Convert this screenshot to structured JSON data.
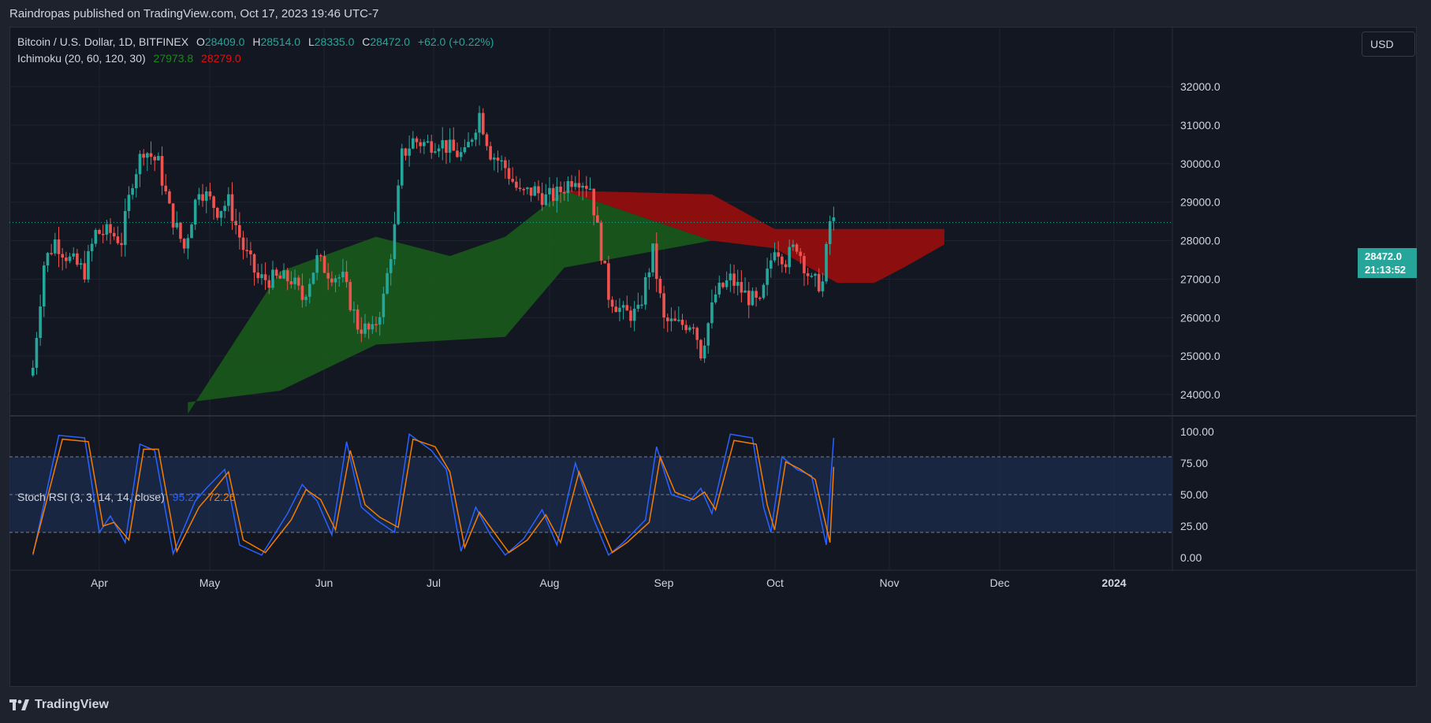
{
  "header": {
    "published": "Raindropas published on TradingView.com, Oct 17, 2023 19:46 UTC-7"
  },
  "legend": {
    "symbol": "Bitcoin / U.S. Dollar, 1D, BITFINEX",
    "o_label": "O",
    "o_value": "28409.0",
    "h_label": "H",
    "h_value": "28514.0",
    "l_label": "L",
    "l_value": "28335.0",
    "c_label": "C",
    "c_value": "28472.0",
    "change": "+62.0 (+0.22%)",
    "ichimoku_label": "Ichimoku (20, 60, 120, 30)",
    "ichimoku_a": "27973.8",
    "ichimoku_b": "28279.0",
    "stoch_label": "Stoch RSI (3, 3, 14, 14, close)",
    "stoch_k": "95.27",
    "stoch_d": "72.26"
  },
  "controls": {
    "currency": "USD"
  },
  "price_tag": {
    "price": "28472.0",
    "countdown": "21:13:52"
  },
  "footer": {
    "brand": "TradingView"
  },
  "colors": {
    "up": "#26a69a",
    "down": "#ef5350",
    "cloud_bull": "#1a5e1a",
    "cloud_bear": "#9b0d0d",
    "k_line": "#2962ff",
    "d_line": "#f57c00"
  },
  "chart_data": {
    "type": "candlestick",
    "x_ticks": [
      "Apr",
      "May",
      "Jun",
      "Jul",
      "Aug",
      "Sep",
      "Oct",
      "Nov",
      "Dec",
      "2024"
    ],
    "y_ticks": [
      "32000.0",
      "31000.0",
      "30000.0",
      "29000.0",
      "28000.0",
      "27000.0",
      "26000.0",
      "25000.0",
      "24000.0"
    ],
    "ylim": [
      23500,
      33300
    ],
    "last_price": 28472.0,
    "close_path": [
      [
        "2023-03-14",
        24700
      ],
      [
        "2023-03-17",
        27400
      ],
      [
        "2023-03-20",
        28000
      ],
      [
        "2023-03-24",
        27500
      ],
      [
        "2023-03-28",
        27200
      ],
      [
        "2023-03-31",
        28200
      ],
      [
        "2023-04-04",
        28200
      ],
      [
        "2023-04-07",
        28000
      ],
      [
        "2023-04-10",
        29600
      ],
      [
        "2023-04-13",
        30400
      ],
      [
        "2023-04-17",
        30000
      ],
      [
        "2023-04-20",
        28800
      ],
      [
        "2023-04-24",
        27800
      ],
      [
        "2023-04-28",
        29400
      ],
      [
        "2023-05-03",
        28800
      ],
      [
        "2023-05-06",
        29000
      ],
      [
        "2023-05-10",
        27800
      ],
      [
        "2023-05-14",
        27000
      ],
      [
        "2023-05-18",
        27000
      ],
      [
        "2023-05-23",
        27000
      ],
      [
        "2023-05-26",
        26500
      ],
      [
        "2023-05-30",
        27500
      ],
      [
        "2023-06-02",
        27200
      ],
      [
        "2023-06-06",
        27000
      ],
      [
        "2023-06-10",
        25800
      ],
      [
        "2023-06-14",
        25600
      ],
      [
        "2023-06-17",
        26500
      ],
      [
        "2023-06-20",
        28300
      ],
      [
        "2023-06-22",
        30200
      ],
      [
        "2023-06-25",
        30600
      ],
      [
        "2023-06-29",
        30500
      ],
      [
        "2023-07-02",
        30600
      ],
      [
        "2023-07-06",
        30300
      ],
      [
        "2023-07-09",
        30200
      ],
      [
        "2023-07-13",
        31300
      ],
      [
        "2023-07-16",
        30300
      ],
      [
        "2023-07-20",
        29900
      ],
      [
        "2023-07-24",
        29200
      ],
      [
        "2023-07-28",
        29300
      ],
      [
        "2023-07-31",
        29100
      ],
      [
        "2023-08-03",
        29200
      ],
      [
        "2023-08-08",
        29700
      ],
      [
        "2023-08-12",
        29400
      ],
      [
        "2023-08-17",
        26600
      ],
      [
        "2023-08-21",
        26100
      ],
      [
        "2023-08-25",
        26100
      ],
      [
        "2023-08-29",
        27700
      ],
      [
        "2023-09-01",
        25900
      ],
      [
        "2023-09-05",
        25800
      ],
      [
        "2023-09-09",
        25900
      ],
      [
        "2023-09-11",
        25100
      ],
      [
        "2023-09-15",
        26600
      ],
      [
        "2023-09-19",
        27000
      ],
      [
        "2023-09-23",
        26600
      ],
      [
        "2023-09-27",
        26300
      ],
      [
        "2023-10-01",
        27900
      ],
      [
        "2023-10-04",
        27500
      ],
      [
        "2023-10-07",
        27900
      ],
      [
        "2023-10-11",
        26900
      ],
      [
        "2023-10-14",
        26900
      ],
      [
        "2023-10-16",
        28500
      ],
      [
        "2023-10-17",
        28472
      ]
    ],
    "ichimoku_cloud": {
      "span_a": [
        [
          "2023-04-25",
          23500
        ],
        [
          "2023-05-20",
          27200
        ],
        [
          "2023-06-15",
          28100
        ],
        [
          "2023-07-05",
          27600
        ],
        [
          "2023-07-20",
          28100
        ],
        [
          "2023-08-05",
          29300
        ],
        [
          "2023-09-14",
          29200
        ],
        [
          "2023-10-01",
          28300
        ],
        [
          "2023-11-16",
          28300
        ]
      ],
      "span_b": [
        [
          "2023-04-25",
          23800
        ],
        [
          "2023-05-20",
          24100
        ],
        [
          "2023-06-15",
          25300
        ],
        [
          "2023-07-20",
          25500
        ],
        [
          "2023-08-05",
          27300
        ],
        [
          "2023-09-14",
          28000
        ],
        [
          "2023-10-01",
          27800
        ],
        [
          "2023-10-18",
          26900
        ],
        [
          "2023-10-28",
          26900
        ],
        [
          "2023-11-05",
          27300
        ],
        [
          "2023-11-16",
          27900
        ]
      ]
    },
    "stoch_rsi": {
      "ylim": [
        -8,
        108
      ],
      "y_ticks": [
        "100.00",
        "75.00",
        "50.00",
        "25.00",
        "0.00"
      ],
      "bands": [
        80,
        50,
        20
      ],
      "k_series": "Stoch RSI %K",
      "d_series": "Stoch RSI %D",
      "k": [
        [
          "2023-03-14",
          2
        ],
        [
          "2023-03-21",
          97
        ],
        [
          "2023-03-28",
          95
        ],
        [
          "2023-04-01",
          20
        ],
        [
          "2023-04-04",
          33
        ],
        [
          "2023-04-08",
          12
        ],
        [
          "2023-04-12",
          90
        ],
        [
          "2023-04-16",
          85
        ],
        [
          "2023-04-21",
          3
        ],
        [
          "2023-04-27",
          45
        ],
        [
          "2023-04-30",
          55
        ],
        [
          "2023-05-05",
          70
        ],
        [
          "2023-05-09",
          10
        ],
        [
          "2023-05-15",
          2
        ],
        [
          "2023-05-22",
          35
        ],
        [
          "2023-05-26",
          58
        ],
        [
          "2023-05-30",
          45
        ],
        [
          "2023-06-03",
          18
        ],
        [
          "2023-06-07",
          92
        ],
        [
          "2023-06-11",
          40
        ],
        [
          "2023-06-15",
          30
        ],
        [
          "2023-06-20",
          20
        ],
        [
          "2023-06-24",
          98
        ],
        [
          "2023-06-30",
          85
        ],
        [
          "2023-07-04",
          70
        ],
        [
          "2023-07-08",
          5
        ],
        [
          "2023-07-12",
          40
        ],
        [
          "2023-07-16",
          18
        ],
        [
          "2023-07-20",
          2
        ],
        [
          "2023-07-25",
          15
        ],
        [
          "2023-07-30",
          38
        ],
        [
          "2023-08-03",
          10
        ],
        [
          "2023-08-08",
          75
        ],
        [
          "2023-08-13",
          30
        ],
        [
          "2023-08-17",
          2
        ],
        [
          "2023-08-21",
          12
        ],
        [
          "2023-08-27",
          30
        ],
        [
          "2023-08-30",
          88
        ],
        [
          "2023-09-03",
          50
        ],
        [
          "2023-09-08",
          45
        ],
        [
          "2023-09-11",
          55
        ],
        [
          "2023-09-14",
          35
        ],
        [
          "2023-09-19",
          98
        ],
        [
          "2023-09-25",
          95
        ],
        [
          "2023-09-28",
          40
        ],
        [
          "2023-09-30",
          20
        ],
        [
          "2023-10-03",
          80
        ],
        [
          "2023-10-07",
          70
        ],
        [
          "2023-10-11",
          65
        ],
        [
          "2023-10-15",
          10
        ],
        [
          "2023-10-17",
          95
        ]
      ],
      "d": [
        [
          "2023-03-14",
          3
        ],
        [
          "2023-03-22",
          94
        ],
        [
          "2023-03-29",
          92
        ],
        [
          "2023-04-02",
          25
        ],
        [
          "2023-04-05",
          28
        ],
        [
          "2023-04-09",
          14
        ],
        [
          "2023-04-13",
          86
        ],
        [
          "2023-04-17",
          86
        ],
        [
          "2023-04-22",
          5
        ],
        [
          "2023-04-28",
          40
        ],
        [
          "2023-05-01",
          50
        ],
        [
          "2023-05-06",
          68
        ],
        [
          "2023-05-10",
          14
        ],
        [
          "2023-05-16",
          4
        ],
        [
          "2023-05-23",
          30
        ],
        [
          "2023-05-27",
          54
        ],
        [
          "2023-05-31",
          46
        ],
        [
          "2023-06-04",
          22
        ],
        [
          "2023-06-08",
          85
        ],
        [
          "2023-06-12",
          42
        ],
        [
          "2023-06-16",
          32
        ],
        [
          "2023-06-21",
          24
        ],
        [
          "2023-06-25",
          94
        ],
        [
          "2023-07-01",
          88
        ],
        [
          "2023-07-05",
          68
        ],
        [
          "2023-07-09",
          8
        ],
        [
          "2023-07-13",
          36
        ],
        [
          "2023-07-17",
          20
        ],
        [
          "2023-07-21",
          4
        ],
        [
          "2023-07-26",
          14
        ],
        [
          "2023-07-31",
          34
        ],
        [
          "2023-08-04",
          12
        ],
        [
          "2023-08-09",
          68
        ],
        [
          "2023-08-14",
          32
        ],
        [
          "2023-08-18",
          4
        ],
        [
          "2023-08-22",
          12
        ],
        [
          "2023-08-28",
          28
        ],
        [
          "2023-08-31",
          80
        ],
        [
          "2023-09-04",
          52
        ],
        [
          "2023-09-09",
          46
        ],
        [
          "2023-09-12",
          52
        ],
        [
          "2023-09-15",
          38
        ],
        [
          "2023-09-20",
          93
        ],
        [
          "2023-09-26",
          90
        ],
        [
          "2023-09-29",
          42
        ],
        [
          "2023-10-01",
          22
        ],
        [
          "2023-10-04",
          76
        ],
        [
          "2023-10-08",
          70
        ],
        [
          "2023-10-12",
          62
        ],
        [
          "2023-10-16",
          12
        ],
        [
          "2023-10-17",
          72
        ]
      ]
    }
  }
}
